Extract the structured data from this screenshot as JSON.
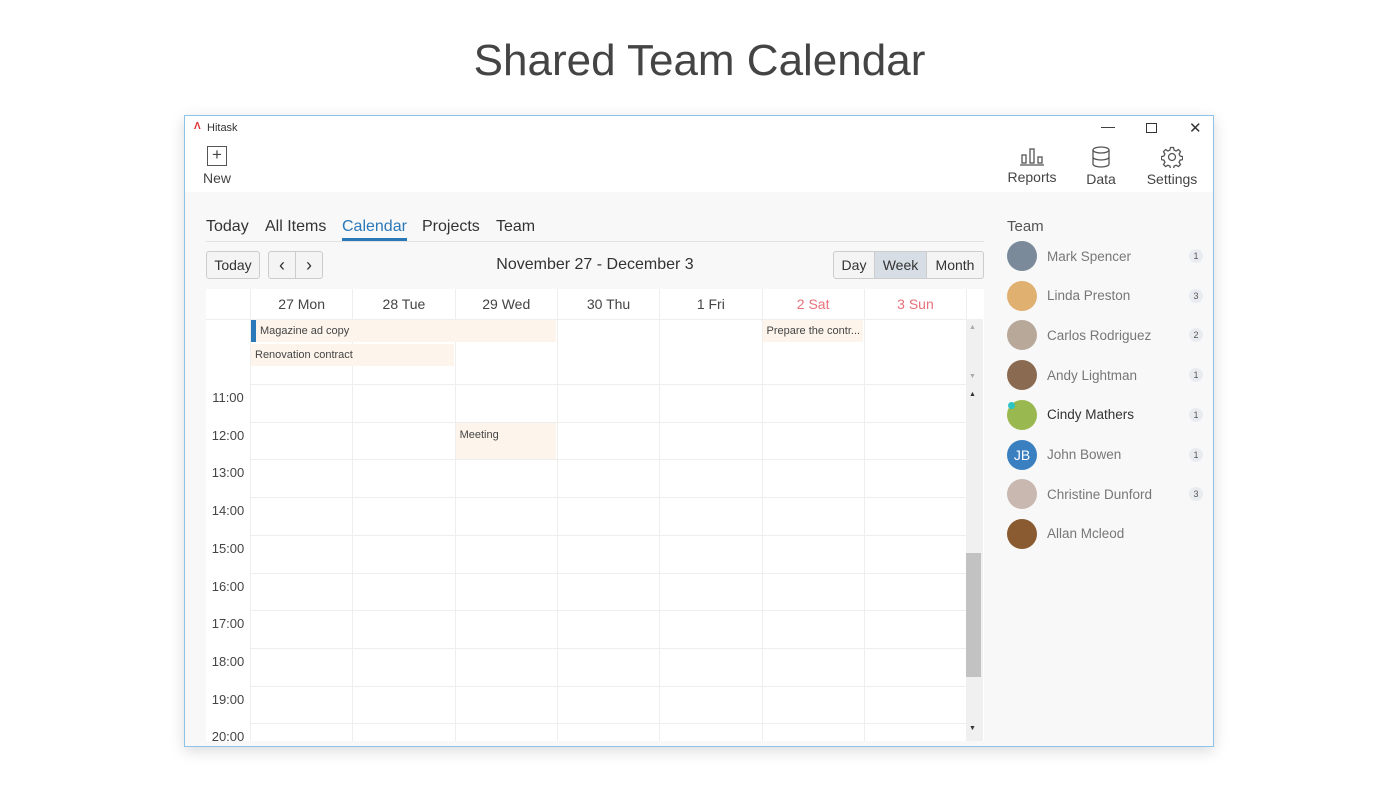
{
  "page_title": "Shared Team Calendar",
  "window": {
    "app_name": "Hitask"
  },
  "toolbar": {
    "new": "New",
    "reports": "Reports",
    "data": "Data",
    "settings": "Settings"
  },
  "tabs": [
    {
      "label": "Today"
    },
    {
      "label": "All Items"
    },
    {
      "label": "Calendar",
      "active": true
    },
    {
      "label": "Projects"
    },
    {
      "label": "Team"
    }
  ],
  "calendar": {
    "today_button": "Today",
    "range": "November 27 - December 3",
    "views": [
      "Day",
      "Week",
      "Month"
    ],
    "active_view": "Week",
    "days": [
      "27 Mon",
      "28 Tue",
      "29 Wed",
      "30 Thu",
      "1 Fri",
      "2 Sat",
      "3 Sun"
    ],
    "hours": [
      "11:00",
      "12:00",
      "13:00",
      "14:00",
      "15:00",
      "16:00",
      "17:00",
      "18:00",
      "19:00",
      "20:00"
    ],
    "events": [
      {
        "title": "Magazine ad copy",
        "start_day": 0,
        "span": 3,
        "all_day": true
      },
      {
        "title": "Renovation contract",
        "start_day": 0,
        "span": 2,
        "all_day": true
      },
      {
        "title": "Prepare the contr...",
        "start_day": 5,
        "span": 1,
        "all_day": true
      },
      {
        "title": "Meeting",
        "start_day": 2,
        "span": 1,
        "time": "12:00"
      }
    ],
    "weekend_color": "#e8707a",
    "accent": "#2a78b8"
  },
  "team": {
    "title": "Team",
    "members": [
      {
        "name": "Mark Spencer",
        "count": "1",
        "color": "#7a8a9a"
      },
      {
        "name": "Linda Preston",
        "count": "3",
        "color": "#e0b070"
      },
      {
        "name": "Carlos Rodriguez",
        "count": "2",
        "color": "#b8a89a"
      },
      {
        "name": "Andy Lightman",
        "count": "1",
        "color": "#8a6a50"
      },
      {
        "name": "Cindy Mathers",
        "count": "1",
        "color": "#9ab850",
        "online": true
      },
      {
        "name": "John Bowen",
        "count": "1",
        "color": "#3a7fc0",
        "initials": "JB"
      },
      {
        "name": "Christine Dunford",
        "count": "3",
        "color": "#c8b8b0"
      },
      {
        "name": "Allan Mcleod",
        "count": "",
        "color": "#8a5a30"
      }
    ]
  }
}
